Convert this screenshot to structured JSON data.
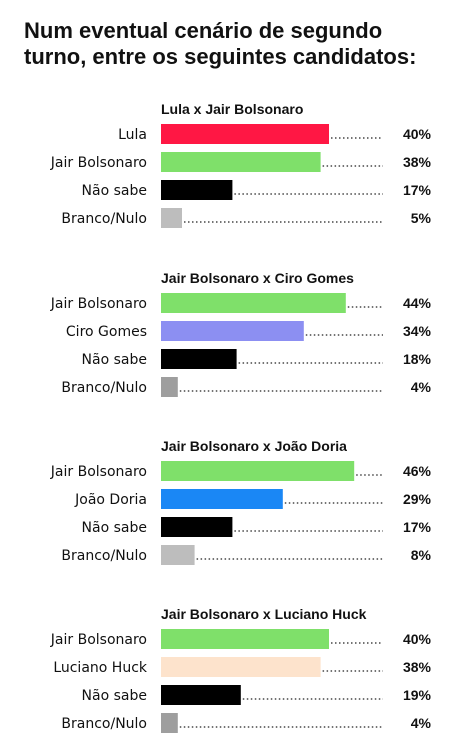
{
  "title": "Num eventual cenário de segundo turno, entre os seguintes candidatos:",
  "chart_data": [
    {
      "type": "bar",
      "title": "Lula x Jair Bolsonaro",
      "categories": [
        "Lula",
        "Jair Bolsonaro",
        "Não sabe",
        "Branco/Nulo"
      ],
      "values": [
        40,
        38,
        17,
        5
      ],
      "labels": [
        "40%",
        "38%",
        "17%",
        "5%"
      ],
      "colors": [
        "#ff1744",
        "#7fe06a",
        "#000000",
        "#bdbdbd"
      ]
    },
    {
      "type": "bar",
      "title": "Jair Bolsonaro x Ciro Gomes",
      "categories": [
        "Jair Bolsonaro",
        "Ciro Gomes",
        "Não sabe",
        "Branco/Nulo"
      ],
      "values": [
        44,
        34,
        18,
        4
      ],
      "labels": [
        "44%",
        "34%",
        "18%",
        "4%"
      ],
      "colors": [
        "#7fe06a",
        "#8c8ff2",
        "#000000",
        "#9e9e9e"
      ]
    },
    {
      "type": "bar",
      "title": "Jair Bolsonaro x João Doria",
      "categories": [
        "Jair Bolsonaro",
        "João Doria",
        "Não sabe",
        "Branco/Nulo"
      ],
      "values": [
        46,
        29,
        17,
        8
      ],
      "labels": [
        "46%",
        "29%",
        "17%",
        "8%"
      ],
      "colors": [
        "#7fe06a",
        "#1a87f5",
        "#000000",
        "#bdbdbd"
      ]
    },
    {
      "type": "bar",
      "title": "Jair Bolsonaro x Luciano Huck",
      "categories": [
        "Jair Bolsonaro",
        "Luciano Huck",
        "Não sabe",
        "Branco/Nulo"
      ],
      "values": [
        40,
        38,
        19,
        4
      ],
      "labels": [
        "40%",
        "38%",
        "19%",
        "4%"
      ],
      "colors": [
        "#7fe06a",
        "#fde3cc",
        "#000000",
        "#9e9e9e"
      ]
    }
  ]
}
